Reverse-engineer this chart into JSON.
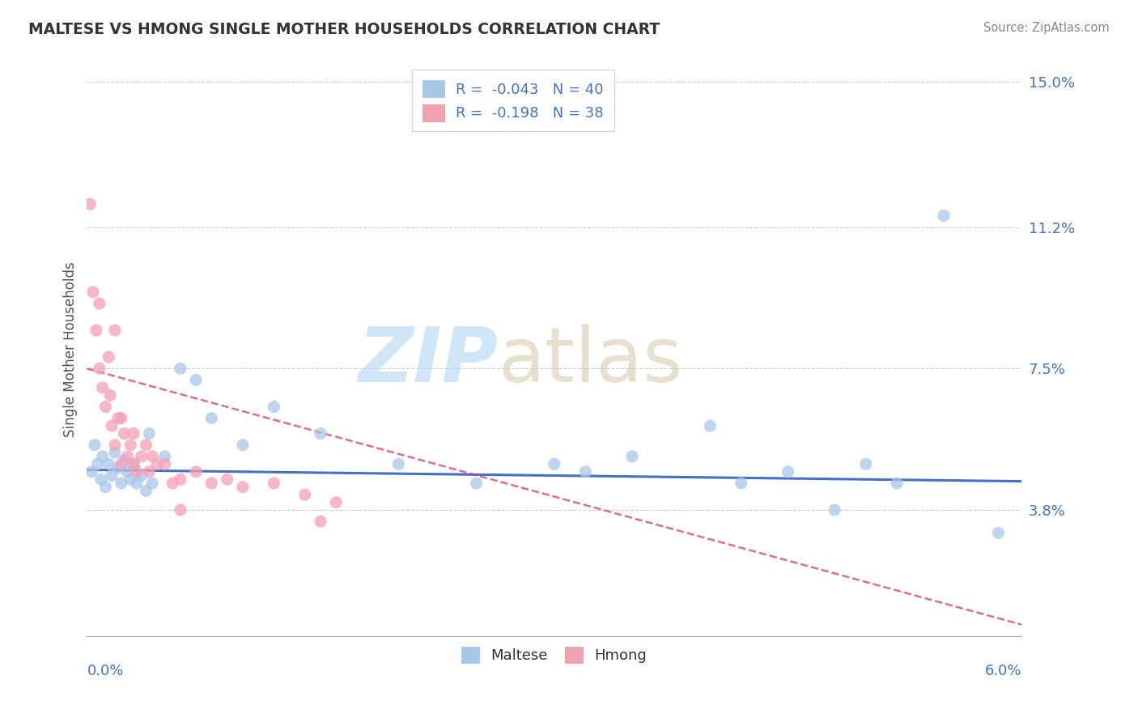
{
  "title": "MALTESE VS HMONG SINGLE MOTHER HOUSEHOLDS CORRELATION CHART",
  "source": "Source: ZipAtlas.com",
  "ylabel": "Single Mother Households",
  "right_yticks": [
    3.8,
    7.5,
    11.2,
    15.0
  ],
  "xmin": 0.0,
  "xmax": 6.0,
  "ymin": 0.5,
  "ymax": 15.5,
  "maltese_R": -0.043,
  "maltese_N": 40,
  "hmong_R": -0.198,
  "hmong_N": 38,
  "maltese_color": "#a8c8e8",
  "hmong_color": "#f4a0b5",
  "maltese_line_color": "#3060c0",
  "hmong_line_color": "#d04060",
  "maltese_x": [
    0.03,
    0.05,
    0.07,
    0.09,
    0.1,
    0.12,
    0.14,
    0.16,
    0.18,
    0.2,
    0.22,
    0.24,
    0.26,
    0.28,
    0.3,
    0.32,
    0.35,
    0.38,
    0.4,
    0.42,
    0.5,
    0.6,
    0.7,
    0.8,
    1.0,
    1.2,
    1.5,
    2.0,
    2.5,
    3.0,
    3.2,
    3.5,
    4.0,
    4.2,
    4.5,
    4.8,
    5.0,
    5.2,
    5.5,
    5.85
  ],
  "maltese_y": [
    4.8,
    5.5,
    5.0,
    4.6,
    5.2,
    4.4,
    5.0,
    4.7,
    5.3,
    4.9,
    4.5,
    5.1,
    4.8,
    4.6,
    5.0,
    4.5,
    4.7,
    4.3,
    5.8,
    4.5,
    5.2,
    7.5,
    7.2,
    6.2,
    5.5,
    6.5,
    5.8,
    5.0,
    4.5,
    5.0,
    4.8,
    5.2,
    6.0,
    4.5,
    4.8,
    3.8,
    5.0,
    4.5,
    11.5,
    3.2
  ],
  "hmong_x": [
    0.02,
    0.04,
    0.06,
    0.08,
    0.1,
    0.12,
    0.14,
    0.16,
    0.18,
    0.2,
    0.22,
    0.24,
    0.26,
    0.28,
    0.3,
    0.32,
    0.35,
    0.38,
    0.4,
    0.5,
    0.6,
    0.7,
    0.8,
    0.9,
    1.0,
    1.2,
    1.4,
    1.6,
    0.45,
    0.55,
    0.08,
    0.15,
    0.22,
    0.3,
    0.42,
    0.6,
    1.5,
    0.18
  ],
  "hmong_y": [
    11.8,
    9.5,
    8.5,
    7.5,
    7.0,
    6.5,
    7.8,
    6.0,
    5.5,
    6.2,
    5.0,
    5.8,
    5.2,
    5.5,
    5.0,
    4.8,
    5.2,
    5.5,
    4.8,
    5.0,
    4.6,
    4.8,
    4.5,
    4.6,
    4.4,
    4.5,
    4.2,
    4.0,
    5.0,
    4.5,
    9.2,
    6.8,
    6.2,
    5.8,
    5.2,
    3.8,
    3.5,
    8.5
  ]
}
